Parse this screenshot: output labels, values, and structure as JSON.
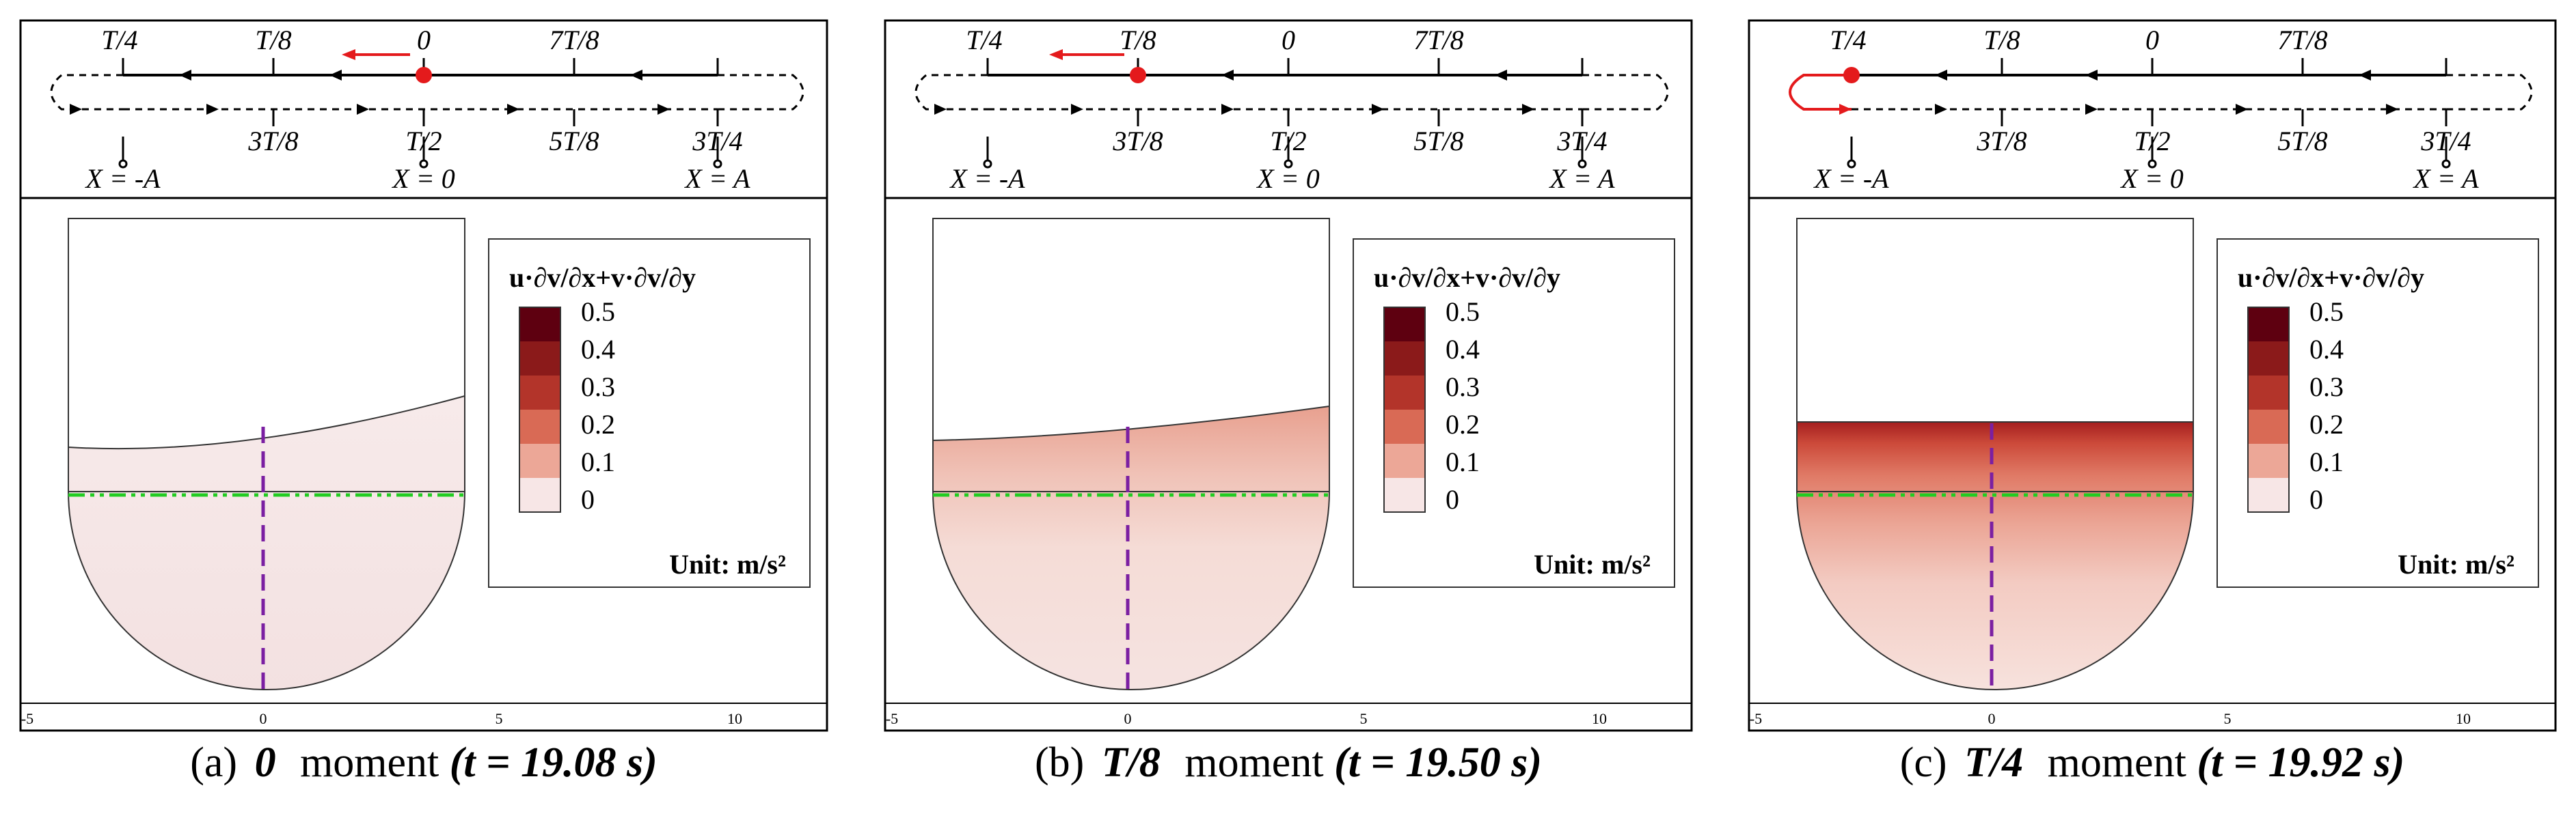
{
  "legend": {
    "title": "u·∂v/∂x+v·∂v/∂y",
    "levels": [
      "0.5",
      "0.4",
      "0.3",
      "0.2",
      "0.1",
      "0"
    ],
    "unit": "Unit: m/s²"
  },
  "schematic": {
    "top_labels": [
      "T/4",
      "T/8",
      "0",
      "7T/8"
    ],
    "bottom_labels": [
      "3T/8",
      "T/2",
      "5T/8",
      "3T/4"
    ],
    "position_labels": [
      "X = -A",
      "X = 0",
      "X = A"
    ]
  },
  "axis_ticks": [
    "-5",
    "0",
    "5",
    "10"
  ],
  "colors": {
    "accent_marker": "#e41a1c",
    "free_surface_line": "#4b0082",
    "horizontal_axis": "#22cc22",
    "vertical_axis": "#7b1fa2",
    "colormap_low": "#f7e6e6",
    "colormap_high": "#5e0010"
  },
  "panels": [
    {
      "letter": "(a)",
      "moment": "0",
      "word": "moment",
      "time": "(t = 19.08 s)",
      "marker_state": "0"
    },
    {
      "letter": "(b)",
      "moment": "T/8",
      "word": "moment",
      "time": "(t = 19.50 s)",
      "marker_state": "T/8"
    },
    {
      "letter": "(c)",
      "moment": "T/4",
      "word": "moment",
      "time": "(t = 19.92 s)",
      "marker_state": "T/4"
    }
  ]
}
